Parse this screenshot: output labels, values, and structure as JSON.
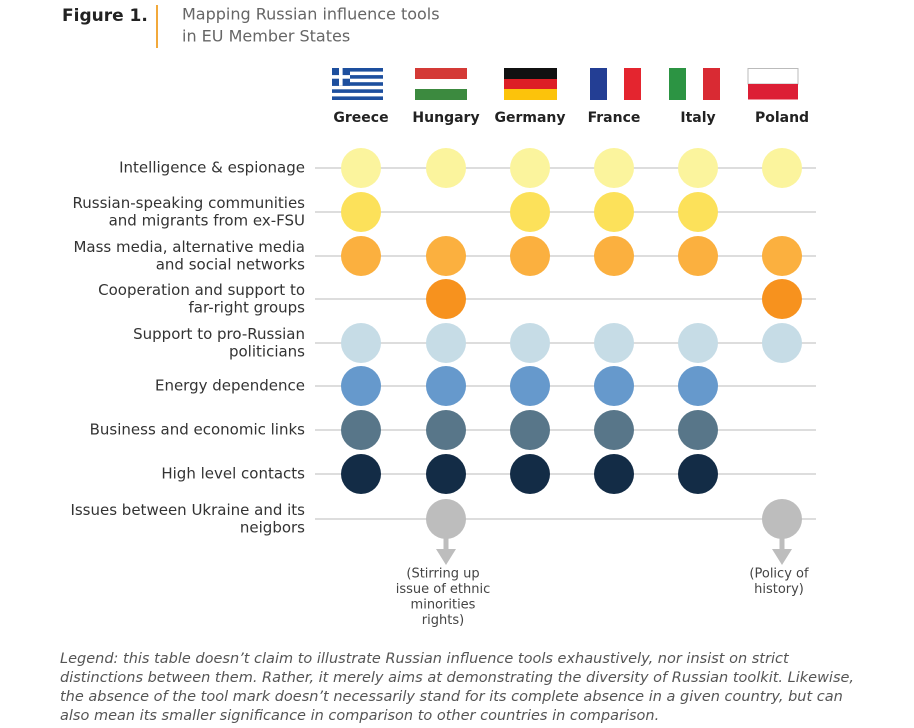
{
  "header": {
    "figure": "Figure 1.",
    "title_lines": [
      "Mapping Russian influence tools",
      "in EU Member States"
    ]
  },
  "countries": [
    "Greece",
    "Hungary",
    "Germany",
    "France",
    "Italy",
    "Poland"
  ],
  "rows": [
    {
      "lines": [
        "Intelligence & espionage"
      ],
      "color": "#fbf49d",
      "present": [
        true,
        true,
        true,
        true,
        true,
        true
      ]
    },
    {
      "lines": [
        "Russian-speaking communities",
        "and migrants from ex-FSU"
      ],
      "color": "#fce15a",
      "present": [
        true,
        false,
        true,
        true,
        true,
        false
      ]
    },
    {
      "lines": [
        "Mass media, alternative media",
        "and social networks"
      ],
      "color": "#fbb03f",
      "present": [
        true,
        true,
        true,
        true,
        true,
        true
      ]
    },
    {
      "lines": [
        "Cooperation and support to",
        "far-right groups"
      ],
      "color": "#f7921e",
      "present": [
        false,
        true,
        false,
        false,
        false,
        true
      ]
    },
    {
      "lines": [
        "Support to pro-Russian",
        "politicians"
      ],
      "color": "#c6dce6",
      "present": [
        true,
        true,
        true,
        true,
        true,
        true
      ]
    },
    {
      "lines": [
        "Energy dependence"
      ],
      "color": "#6699cc",
      "present": [
        true,
        true,
        true,
        true,
        true,
        false
      ]
    },
    {
      "lines": [
        "Business and economic links"
      ],
      "color": "#587689",
      "present": [
        true,
        true,
        true,
        true,
        true,
        false
      ]
    },
    {
      "lines": [
        "High level contacts"
      ],
      "color": "#132c46",
      "present": [
        true,
        true,
        true,
        true,
        true,
        false
      ]
    },
    {
      "lines": [
        "Issues between Ukraine and its",
        "neigbors"
      ],
      "color": "#bdbdbd",
      "present": [
        false,
        true,
        false,
        false,
        false,
        true
      ],
      "notes": [
        null,
        [
          "(Stirring up",
          "issue of ethnic",
          "minorities",
          "rights)"
        ],
        null,
        null,
        null,
        [
          "(Policy of",
          "history)"
        ]
      ]
    }
  ],
  "legend_lines": [
    "Legend: this table doesn’t claim to illustrate Russian influence tools exhaustively, nor insist on strict",
    "distinctions between them. Rather, it merely aims at demonstrating the diversity of Russian toolkit. Likewise,",
    "the absence of the tool mark doesn’t necessarily stand for its complete absence in a given country, but can",
    "also mean its smaller significance in comparison to other countries in comparison."
  ]
}
